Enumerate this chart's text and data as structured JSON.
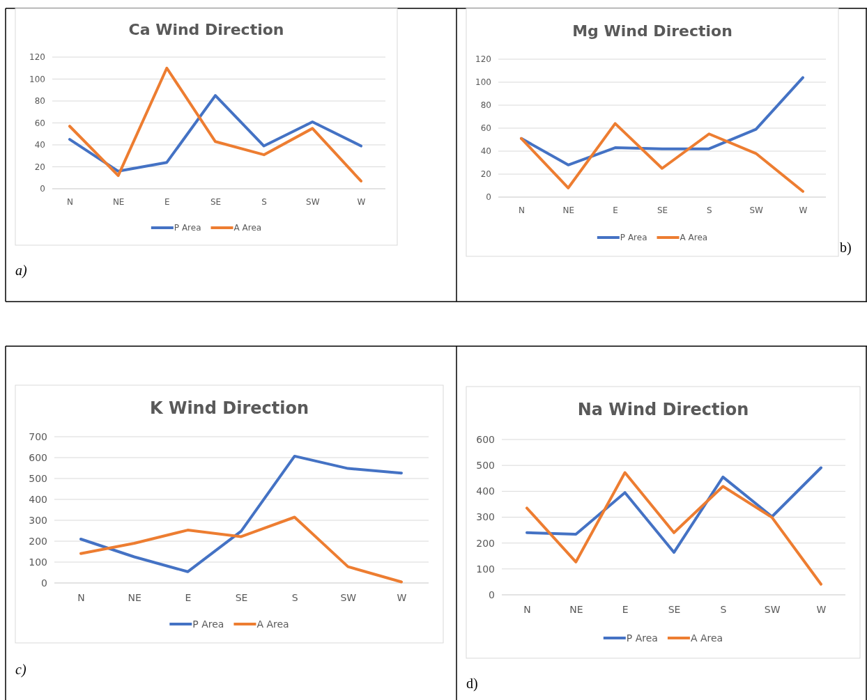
{
  "chart_data": [
    {
      "type": "line",
      "title": "Ca Wind Direction",
      "categories": [
        "N",
        "NE",
        "E",
        "SE",
        "S",
        "SW",
        "W"
      ],
      "ylim": [
        0,
        120
      ],
      "yticks": [
        0,
        20,
        40,
        60,
        80,
        100,
        120
      ],
      "grid": "y",
      "legend": "bottom",
      "annotations": [
        "a)"
      ],
      "series": [
        {
          "name": "P Area",
          "color": "#4472c4",
          "values": [
            45,
            16,
            24,
            85,
            39,
            61,
            39
          ]
        },
        {
          "name": "A Area",
          "color": "#ed7d31",
          "values": [
            57,
            12,
            110,
            43,
            31,
            55,
            7
          ]
        }
      ]
    },
    {
      "type": "line",
      "title": "Mg Wind Direction",
      "categories": [
        "N",
        "NE",
        "E",
        "SE",
        "S",
        "SW",
        "W"
      ],
      "ylim": [
        0,
        120
      ],
      "yticks": [
        0,
        20,
        40,
        60,
        80,
        100,
        120
      ],
      "grid": "y",
      "legend": "bottom",
      "annotations": [
        "b)"
      ],
      "series": [
        {
          "name": "P Area",
          "color": "#4472c4",
          "values": [
            51,
            28,
            43,
            42,
            42,
            59,
            104
          ]
        },
        {
          "name": "A Area",
          "color": "#ed7d31",
          "values": [
            51,
            8,
            64,
            25,
            55,
            38,
            5
          ]
        }
      ]
    },
    {
      "type": "line",
      "title": "K Wind Direction",
      "categories": [
        "N",
        "NE",
        "E",
        "SE",
        "S",
        "SW",
        "W"
      ],
      "ylim": [
        0,
        700
      ],
      "yticks": [
        0,
        100,
        200,
        300,
        400,
        500,
        600,
        700
      ],
      "grid": "y",
      "legend": "bottom",
      "annotations": [
        "c)"
      ],
      "series": [
        {
          "name": "P Area",
          "color": "#4472c4",
          "values": [
            210,
            125,
            54,
            248,
            607,
            548,
            526
          ]
        },
        {
          "name": "A Area",
          "color": "#ed7d31",
          "values": [
            141,
            190,
            253,
            222,
            315,
            78,
            5
          ]
        }
      ]
    },
    {
      "type": "line",
      "title": "Na Wind Direction",
      "categories": [
        "N",
        "NE",
        "E",
        "SE",
        "S",
        "SW",
        "W"
      ],
      "ylim": [
        0,
        600
      ],
      "yticks": [
        0,
        100,
        200,
        300,
        400,
        500,
        600
      ],
      "grid": "y",
      "legend": "bottom",
      "annotations": [
        "d)"
      ],
      "series": [
        {
          "name": "P Area",
          "color": "#4472c4",
          "values": [
            240,
            234,
            395,
            164,
            455,
            302,
            491
          ]
        },
        {
          "name": "A Area",
          "color": "#ed7d31",
          "values": [
            335,
            127,
            472,
            240,
            419,
            299,
            41
          ]
        }
      ]
    }
  ]
}
